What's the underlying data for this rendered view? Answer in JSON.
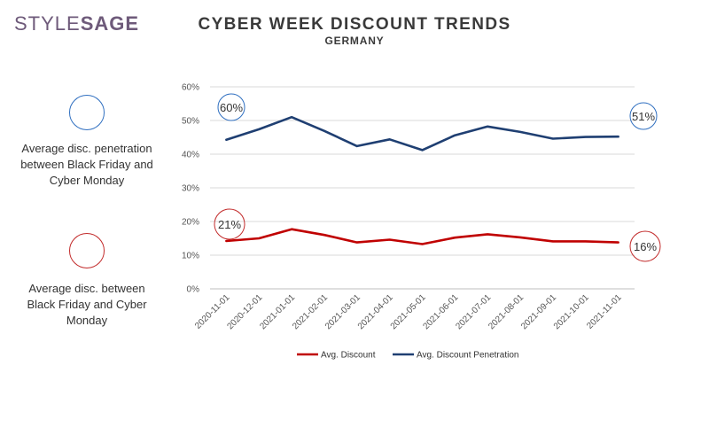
{
  "brand": {
    "part1": "STYLE",
    "part2": "SAGE"
  },
  "header": {
    "title": "CYBER WEEK DISCOUNT TRENDS",
    "subtitle": "GERMANY"
  },
  "side_legend": {
    "penetration": {
      "text": "Average disc. penetration between Black Friday and Cyber Monday",
      "color": "#2f6fc0"
    },
    "discount": {
      "text": "Average disc. between Black Friday and Cyber Monday",
      "color": "#c22a2a"
    }
  },
  "callouts": {
    "pen_first": "60%",
    "pen_last": "51%",
    "disc_first": "21%",
    "disc_last": "16%"
  },
  "chart_data": {
    "type": "line",
    "categories": [
      "2020-11-01",
      "2020-12-01",
      "2021-01-01",
      "2021-02-01",
      "2021-03-01",
      "2021-04-01",
      "2021-05-01",
      "2021-06-01",
      "2021-07-01",
      "2021-08-01",
      "2021-09-01",
      "2021-10-01",
      "2021-11-01"
    ],
    "y_ticks": [
      "0%",
      "10%",
      "20%",
      "30%",
      "40%",
      "50%",
      "60%"
    ],
    "ylim": [
      0,
      60
    ],
    "grid": true,
    "legend_placement": "bottom",
    "series": [
      {
        "name": "Avg. Discount",
        "color": "#c00000",
        "values": [
          14.2,
          15,
          17.7,
          16,
          13.8,
          14.6,
          13.3,
          15.2,
          16.2,
          15.3,
          14.1,
          14.1,
          13.8
        ]
      },
      {
        "name": "Avg. Discount Penetration",
        "color": "#1f3f72",
        "values": [
          44.3,
          47.4,
          51,
          46.9,
          42.4,
          44.4,
          41.2,
          45.6,
          48.2,
          46.6,
          44.6,
          45.1,
          45.2
        ]
      }
    ]
  }
}
